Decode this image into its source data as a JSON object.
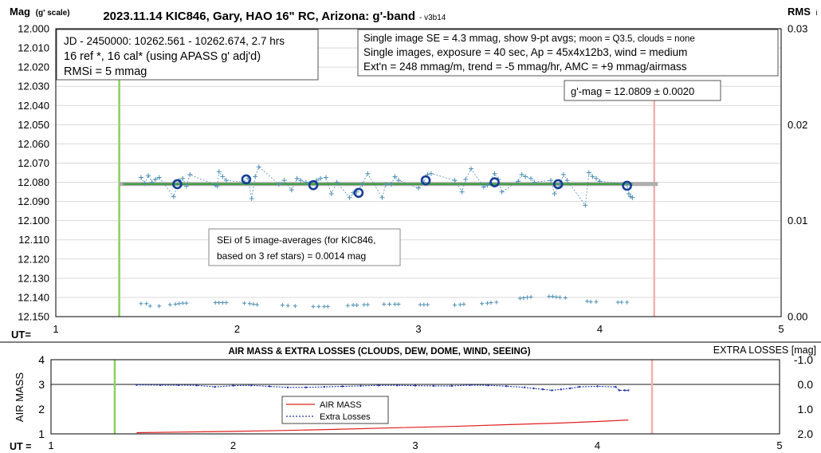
{
  "chart_data": [
    {
      "type": "scatter",
      "title": "2023.11.14 KIC846, Gary, HAO 16\" RC, Arizona: g'-band",
      "version": "- v3b14",
      "ylabel": "Mag",
      "ylabel_small": "(g' scale)",
      "ylabel_right": "RMS",
      "ylabel_right_suffix": "i",
      "xlabel": "UT=",
      "xlim": [
        1,
        5
      ],
      "ylim": [
        12.0,
        12.15
      ],
      "ylim_right": [
        0.0,
        0.03
      ],
      "x_ticks": [
        "1",
        "2",
        "3",
        "4",
        "5"
      ],
      "y_ticks": [
        "12.000",
        "12.010",
        "12.020",
        "12.030",
        "12.040",
        "12.050",
        "12.060",
        "12.070",
        "12.080",
        "12.090",
        "12.100",
        "12.110",
        "12.120",
        "12.130",
        "12.140",
        "12.150"
      ],
      "y_ticks_right": [
        "0.03",
        "0.02",
        "0.01",
        "0.00"
      ],
      "grid": "horizontal",
      "start_marker_ut": 1.35,
      "end_marker_ut": 4.3,
      "info_box_left": [
        "JD - 2450000: 10262.561 - 10262.674, 2.7 hrs",
        "16 ref *, 16 cal* (using APASS g' adj'd)",
        "RMSi = 5 mmag"
      ],
      "info_box_right": {
        "line1_main": "Single image SE = 4.3 mmag, show  9-pt avgs;",
        "line1_small": " moon = Q3.5, clouds = none",
        "line2": "Single images, exposure = 40 sec, Ap = 45x4x12b3, wind = medium",
        "line3": "Ext'n = 248 mmag/m, trend = -5 mmag/hr, AMC = +9 mmag/airmass"
      },
      "gmag_label": "g'-mag = 12.0809 ± 0.0020",
      "sei_note": [
        "SEi of 5 image-averages (for KIC846,",
        "based on 3 ref stars) = 0.0014 mag"
      ],
      "mean_mag": 12.0809,
      "series": [
        {
          "role": "single images",
          "x": [
            1.47,
            1.49,
            1.51,
            1.53,
            1.55,
            1.57,
            1.65,
            1.68,
            1.7,
            1.72,
            1.74,
            1.88,
            1.89,
            1.9,
            1.92,
            1.94,
            2.04,
            2.06,
            2.08,
            2.1,
            2.12,
            2.23,
            2.26,
            2.3,
            2.33,
            2.35,
            2.38,
            2.44,
            2.46,
            2.49,
            2.52,
            2.55,
            2.62,
            2.64,
            2.66,
            2.69,
            2.72,
            2.8,
            2.82,
            2.85,
            2.87,
            2.89,
            3.0,
            3.03,
            3.05,
            3.07,
            3.2,
            3.24,
            3.26,
            3.29,
            3.36,
            3.38,
            3.42,
            3.44,
            3.46,
            3.55,
            3.57,
            3.59,
            3.62,
            3.64,
            3.73,
            3.75,
            3.78,
            3.8,
            3.82,
            3.92,
            3.94,
            3.96,
            3.98,
            4.0,
            4.15,
            4.16,
            4.17,
            4.18
          ],
          "y": [
            12.0775,
            12.0805,
            12.0765,
            12.08,
            12.0785,
            12.0775,
            12.0875,
            12.079,
            12.078,
            12.082,
            12.076,
            12.0815,
            12.082,
            12.0745,
            12.077,
            12.079,
            12.08,
            12.078,
            12.0885,
            12.077,
            12.072,
            12.081,
            12.079,
            12.084,
            12.078,
            12.079,
            12.08,
            12.079,
            12.078,
            12.0775,
            12.086,
            12.08,
            12.088,
            12.0855,
            12.085,
            12.081,
            12.0755,
            12.088,
            12.081,
            12.081,
            12.077,
            12.079,
            12.083,
            12.08,
            12.076,
            12.0755,
            12.079,
            12.085,
            12.0785,
            12.073,
            12.0825,
            12.0815,
            12.0755,
            12.0785,
            12.085,
            12.0795,
            12.076,
            12.077,
            12.078,
            12.08,
            12.079,
            12.086,
            12.081,
            12.076,
            12.079,
            12.092,
            12.075,
            12.077,
            12.078,
            12.0795,
            12.081,
            12.086,
            12.0875,
            12.088
          ]
        },
        {
          "role": "9-pt averages",
          "x": [
            1.67,
            2.05,
            2.42,
            2.67,
            3.04,
            3.42,
            3.77,
            4.15
          ],
          "y": [
            12.081,
            12.0785,
            12.0815,
            12.0855,
            12.079,
            12.08,
            12.081,
            12.0818
          ]
        },
        {
          "role": "RMSi (right axis)",
          "x": [
            1.47,
            1.5,
            1.52,
            1.57,
            1.63,
            1.66,
            1.68,
            1.7,
            1.72,
            1.88,
            1.9,
            1.92,
            1.94,
            2.04,
            2.07,
            2.09,
            2.11,
            2.25,
            2.28,
            2.32,
            2.42,
            2.45,
            2.48,
            2.5,
            2.61,
            2.64,
            2.66,
            2.7,
            2.72,
            2.81,
            2.84,
            2.87,
            2.89,
            3.01,
            3.03,
            3.05,
            3.2,
            3.23,
            3.25,
            3.35,
            3.38,
            3.4,
            3.43,
            3.56,
            3.58,
            3.6,
            3.62,
            3.72,
            3.74,
            3.76,
            3.78,
            3.81,
            3.93,
            3.95,
            3.98,
            4.1,
            4.12,
            4.15
          ],
          "y": [
            0.00135,
            0.00135,
            0.0011,
            0.0011,
            0.00125,
            0.0013,
            0.00135,
            0.0014,
            0.0014,
            0.00145,
            0.00145,
            0.00145,
            0.00145,
            0.0014,
            0.00135,
            0.0013,
            0.00125,
            0.0012,
            0.00115,
            0.0011,
            0.00105,
            0.00105,
            0.00105,
            0.00105,
            0.00115,
            0.0012,
            0.0012,
            0.00125,
            0.00125,
            0.0013,
            0.0013,
            0.0013,
            0.0013,
            0.00125,
            0.00125,
            0.00125,
            0.0012,
            0.00125,
            0.0013,
            0.00135,
            0.0014,
            0.00145,
            0.0015,
            0.0019,
            0.00195,
            0.002,
            0.00205,
            0.0021,
            0.0021,
            0.00205,
            0.002,
            0.00195,
            0.0016,
            0.00155,
            0.00155,
            0.0015,
            0.0015,
            0.0015
          ]
        }
      ]
    },
    {
      "type": "line",
      "title": "AIR MASS & EXTRA LOSSES (CLOUDS, DEW, DOME, WIND, SEEING)",
      "ylabel": "AIR MASS",
      "ylabel_right": "EXTRA LOSSES [mag]",
      "xlabel": "UT =",
      "xlim": [
        1,
        5
      ],
      "ylim": [
        1,
        4
      ],
      "ylim_right": [
        2.0,
        -1.0
      ],
      "x_ticks": [
        "1",
        "2",
        "3",
        "4",
        "5"
      ],
      "y_ticks": [
        "4",
        "3",
        "2",
        "1"
      ],
      "y_ticks_right": [
        "-1.0",
        "0.0",
        "1.0",
        "2.0"
      ],
      "start_marker_ut": 1.35,
      "end_marker_ut": 4.3,
      "legend_placement": "center",
      "series": [
        {
          "name": "AIR MASS",
          "color": "#e02020",
          "x": [
            1.47,
            1.7,
            2.0,
            2.3,
            2.6,
            2.9,
            3.2,
            3.5,
            3.8,
            4.0,
            4.17
          ],
          "y": [
            1.05,
            1.07,
            1.1,
            1.14,
            1.19,
            1.25,
            1.3,
            1.37,
            1.44,
            1.5,
            1.56
          ]
        },
        {
          "name": "Extra Losses",
          "color": "#1f33a8",
          "x": [
            1.47,
            1.6,
            1.7,
            1.8,
            1.9,
            2.0,
            2.1,
            2.2,
            2.3,
            2.4,
            2.5,
            2.6,
            2.7,
            2.8,
            2.9,
            3.0,
            3.1,
            3.2,
            3.3,
            3.4,
            3.5,
            3.6,
            3.65,
            3.7,
            3.75,
            3.8,
            3.85,
            3.9,
            4.0,
            4.1,
            4.12,
            4.15,
            4.17
          ],
          "y": [
            0.02,
            0.03,
            0.03,
            0.04,
            0.1,
            0.05,
            0.04,
            0.08,
            0.12,
            0.12,
            0.1,
            0.08,
            0.06,
            0.04,
            0.04,
            0.05,
            0.06,
            0.06,
            0.03,
            0.04,
            0.07,
            0.12,
            0.16,
            0.2,
            0.24,
            0.2,
            0.16,
            0.1,
            0.08,
            0.1,
            0.24,
            0.24,
            0.24
          ]
        }
      ]
    }
  ],
  "colors": {
    "single_points": "#4f8fb3",
    "averages": "#153e96",
    "trend": "#2e9b2e",
    "mean_band": "#aeaeae",
    "start_line": "#8ccf5e",
    "end_line": "#f3b0b0",
    "airmass": "#e02020",
    "losses": "#1f33a8"
  }
}
